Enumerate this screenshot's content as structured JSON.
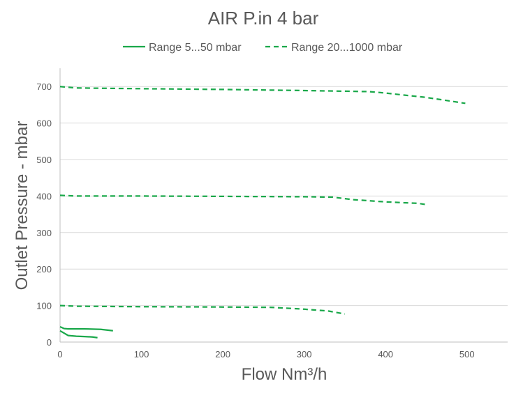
{
  "chart_data": {
    "type": "line",
    "title": "AIR P.in 4 bar",
    "xlabel": "Flow Nm³/h",
    "ylabel": "Outlet Pressure - mbar",
    "xlim": [
      0,
      550
    ],
    "ylim": [
      0,
      750
    ],
    "x_ticks": [
      0,
      100,
      200,
      300,
      400,
      500
    ],
    "y_ticks": [
      0,
      100,
      200,
      300,
      400,
      500,
      600,
      700
    ],
    "x_tick_labels": [
      "0",
      "100",
      "200",
      "300",
      "400",
      "500"
    ],
    "y_tick_labels": [
      "0",
      "100",
      "200",
      "300",
      "400",
      "500",
      "600",
      "700"
    ],
    "grid": "horizontal",
    "legend_position": "top",
    "legend": [
      {
        "label": "Range 5...50 mbar",
        "style": "solid",
        "color": "#1aa84a"
      },
      {
        "label": "Range 20...1000 mbar",
        "style": "dashed",
        "color": "#1aa84a"
      }
    ],
    "series": [
      {
        "style": "solid",
        "color": "#1aa84a",
        "points": [
          [
            0,
            42
          ],
          [
            5,
            37
          ],
          [
            10,
            36
          ],
          [
            30,
            36
          ],
          [
            50,
            35
          ],
          [
            65,
            31
          ]
        ]
      },
      {
        "style": "solid",
        "color": "#1aa84a",
        "points": [
          [
            0,
            31
          ],
          [
            10,
            18
          ],
          [
            20,
            16
          ],
          [
            30,
            15
          ],
          [
            40,
            14
          ],
          [
            46,
            12
          ]
        ]
      },
      {
        "style": "dashed",
        "color": "#1aa84a",
        "points": [
          [
            0,
            100
          ],
          [
            20,
            98
          ],
          [
            100,
            97
          ],
          [
            200,
            96
          ],
          [
            260,
            95
          ],
          [
            300,
            90
          ],
          [
            330,
            85
          ],
          [
            350,
            77
          ]
        ]
      },
      {
        "style": "dashed",
        "color": "#1aa84a",
        "points": [
          [
            0,
            402
          ],
          [
            20,
            400
          ],
          [
            100,
            400
          ],
          [
            200,
            399
          ],
          [
            300,
            398
          ],
          [
            335,
            397
          ],
          [
            360,
            390
          ],
          [
            400,
            384
          ],
          [
            440,
            380
          ],
          [
            452,
            376
          ]
        ]
      },
      {
        "style": "dashed",
        "color": "#1aa84a",
        "points": [
          [
            0,
            700
          ],
          [
            20,
            696
          ],
          [
            100,
            694
          ],
          [
            200,
            692
          ],
          [
            300,
            689
          ],
          [
            380,
            686
          ],
          [
            400,
            682
          ],
          [
            450,
            670
          ],
          [
            498,
            654
          ]
        ]
      }
    ]
  }
}
